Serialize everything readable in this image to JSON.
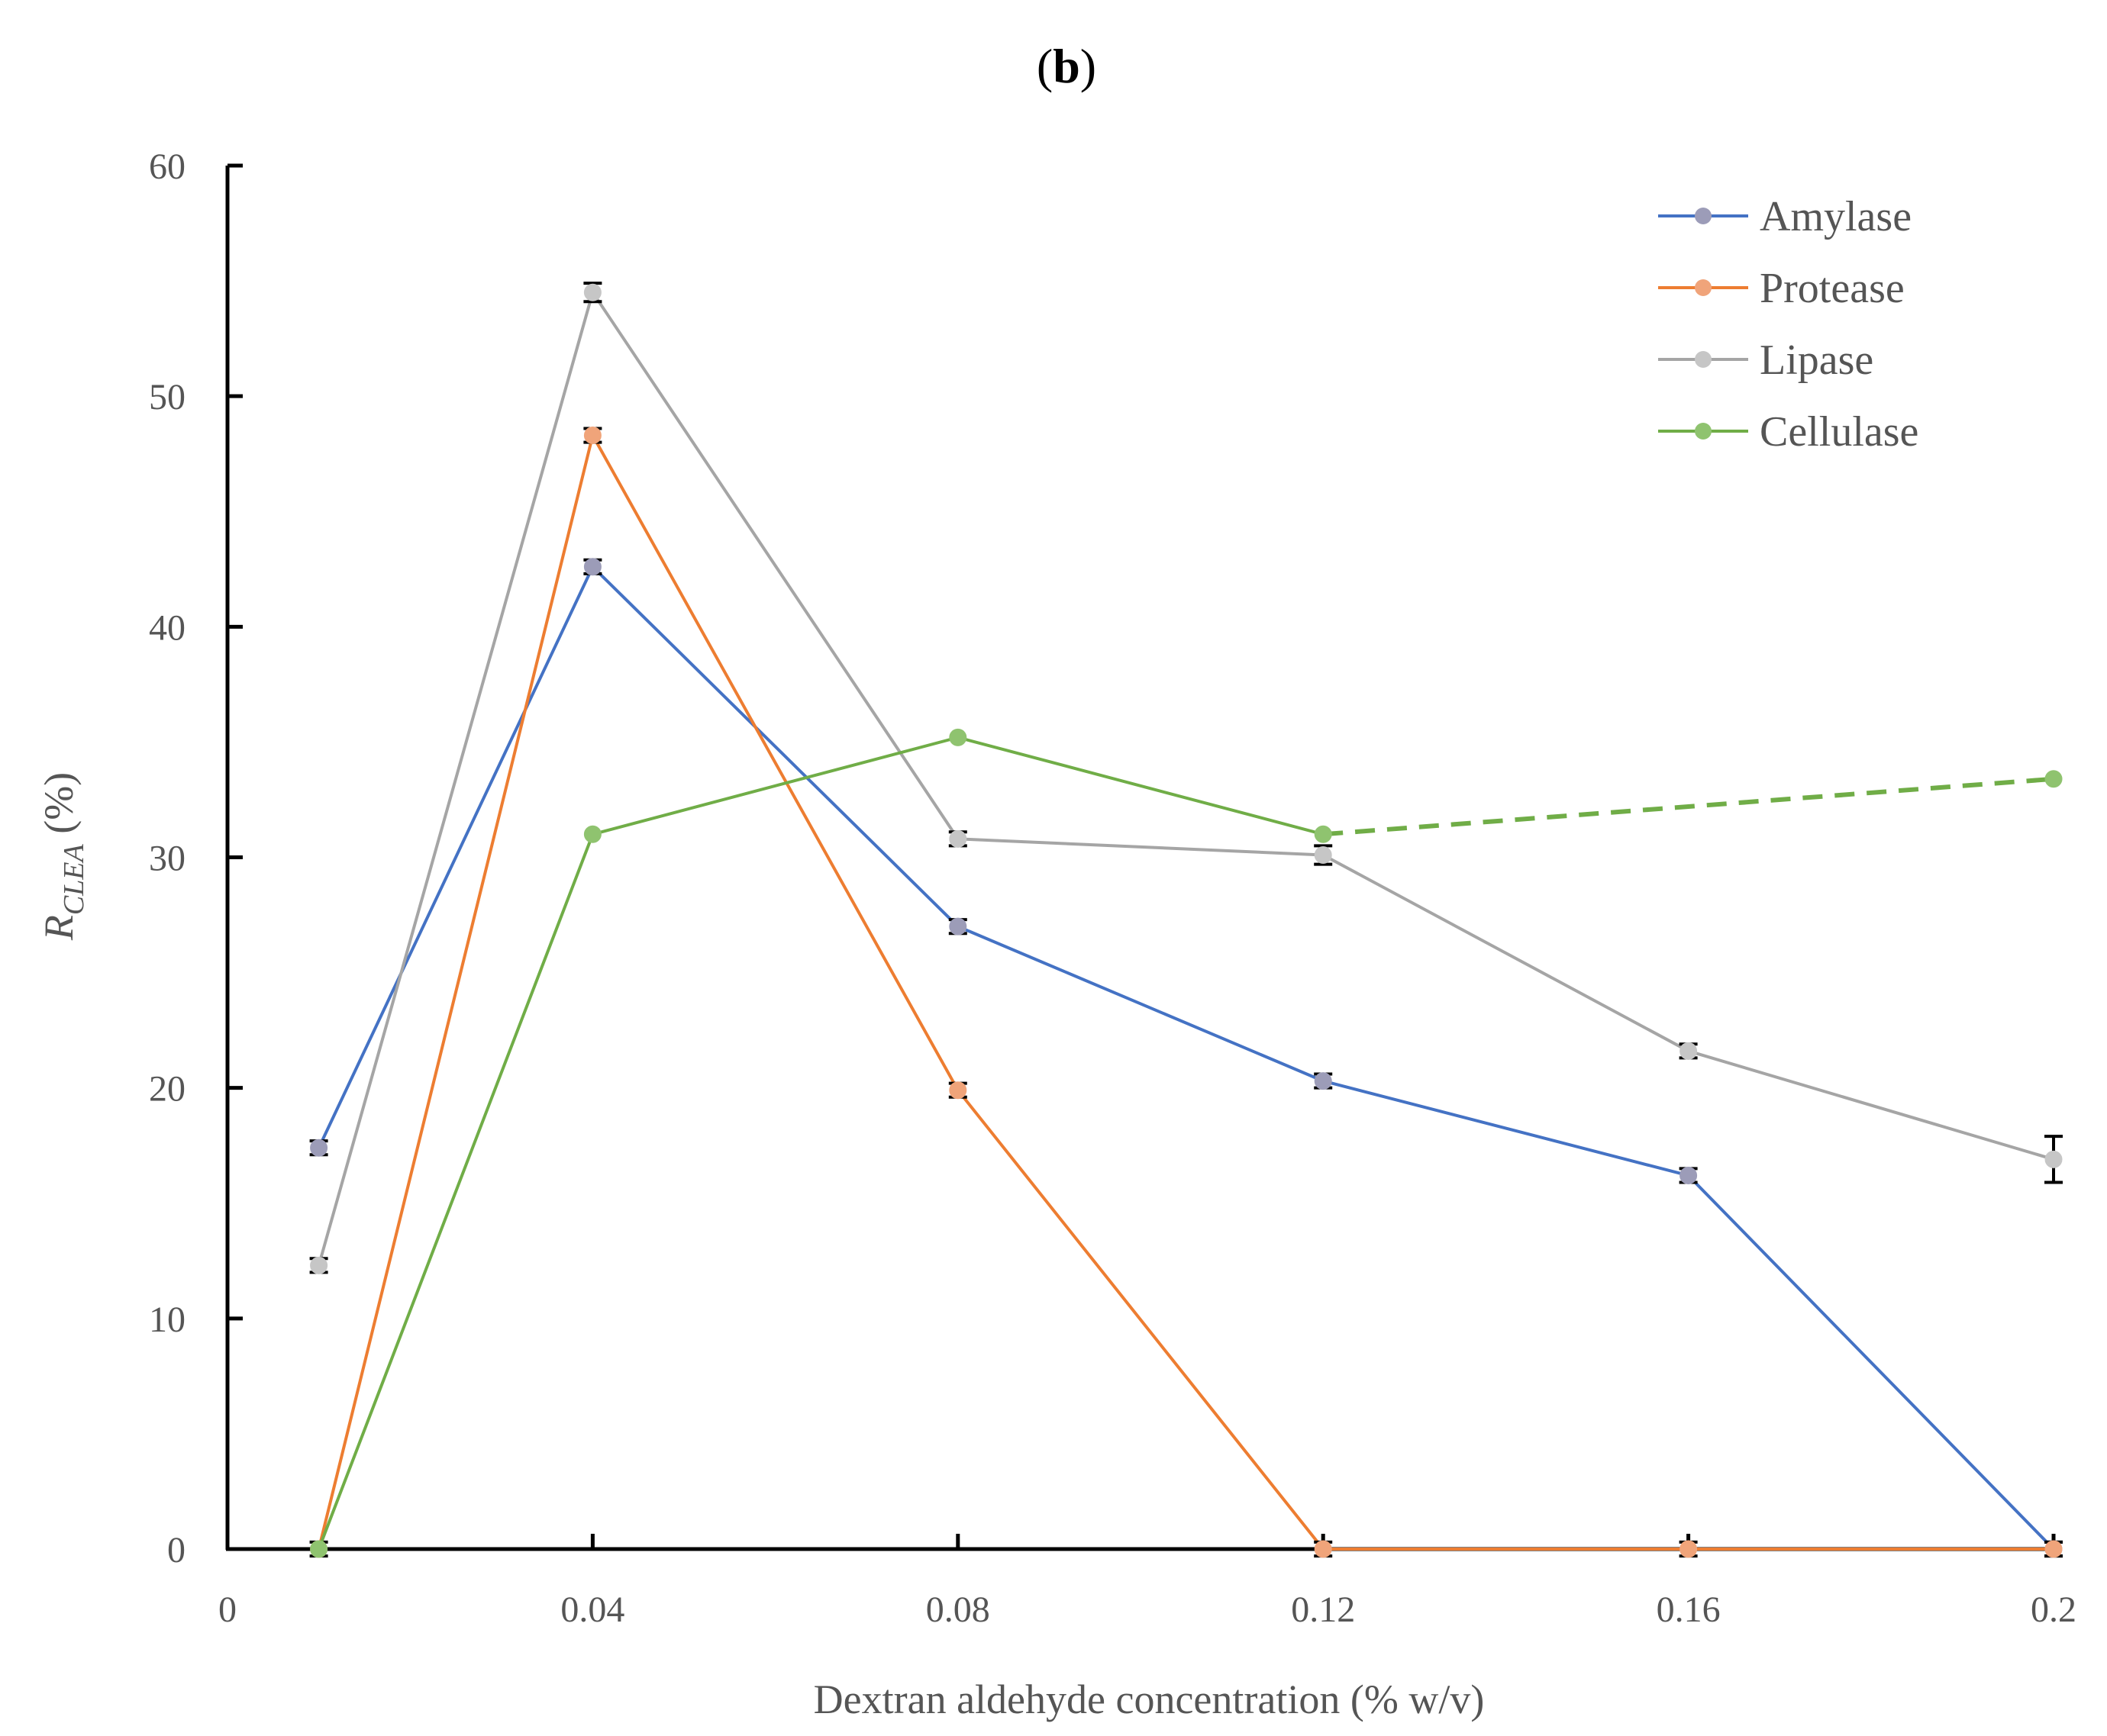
{
  "panel_label": {
    "open": "(",
    "letter": "b",
    "close": ")"
  },
  "chart_data": {
    "type": "line",
    "title": "(b)",
    "xlabel": "Dextran aldehyde concentration (% w/v)",
    "ylabel": {
      "main": "R",
      "subscript": "CLEA",
      "suffix": " (%)"
    },
    "xlim": [
      0,
      0.2
    ],
    "ylim": [
      0,
      60
    ],
    "xticks": [
      0,
      0.04,
      0.08,
      0.12,
      0.16,
      0.2
    ],
    "xtick_labels": [
      "0",
      "0.04",
      "0.08",
      "0.12",
      "0.16",
      "0.2"
    ],
    "yticks": [
      0,
      10,
      20,
      30,
      40,
      50,
      60
    ],
    "ytick_labels": [
      "0",
      "10",
      "20",
      "30",
      "40",
      "50",
      "60"
    ],
    "grid": false,
    "legend_position": "top-right",
    "series": [
      {
        "name": "Amylase",
        "color": "#4472C4",
        "marker_color": "#9C9CB8",
        "x": [
          0.01,
          0.04,
          0.08,
          0.12,
          0.16,
          0.2
        ],
        "y": [
          17.4,
          42.6,
          27.0,
          20.3,
          16.2,
          0
        ],
        "error": [
          0.3,
          0.3,
          0.3,
          0.3,
          0.3,
          0.3
        ],
        "dashed_from_index": null
      },
      {
        "name": "Protease",
        "color": "#ED7D31",
        "marker_color": "#F0A47A",
        "x": [
          0.01,
          0.04,
          0.08,
          0.12,
          0.16,
          0.2
        ],
        "y": [
          0,
          48.3,
          19.9,
          0,
          0,
          0
        ],
        "error": [
          0.3,
          0.3,
          0.3,
          0.3,
          0.3,
          0.3
        ],
        "dashed_from_index": null
      },
      {
        "name": "Lipase",
        "color": "#A5A5A5",
        "marker_color": "#C6C6C6",
        "x": [
          0.01,
          0.04,
          0.08,
          0.12,
          0.16,
          0.2
        ],
        "y": [
          12.3,
          54.5,
          30.8,
          30.1,
          21.6,
          16.9
        ],
        "error": [
          0.3,
          0.4,
          0.3,
          0.4,
          0.3,
          1.0
        ],
        "dashed_from_index": null
      },
      {
        "name": "Cellulase",
        "color": "#70AD47",
        "marker_color": "#8FC36F",
        "x": [
          0.01,
          0.04,
          0.08,
          0.12,
          0.2
        ],
        "y": [
          0,
          31.0,
          35.2,
          31.0,
          33.4
        ],
        "error": [
          0,
          0,
          0,
          0,
          0
        ],
        "dashed_from_index": 3
      }
    ]
  }
}
